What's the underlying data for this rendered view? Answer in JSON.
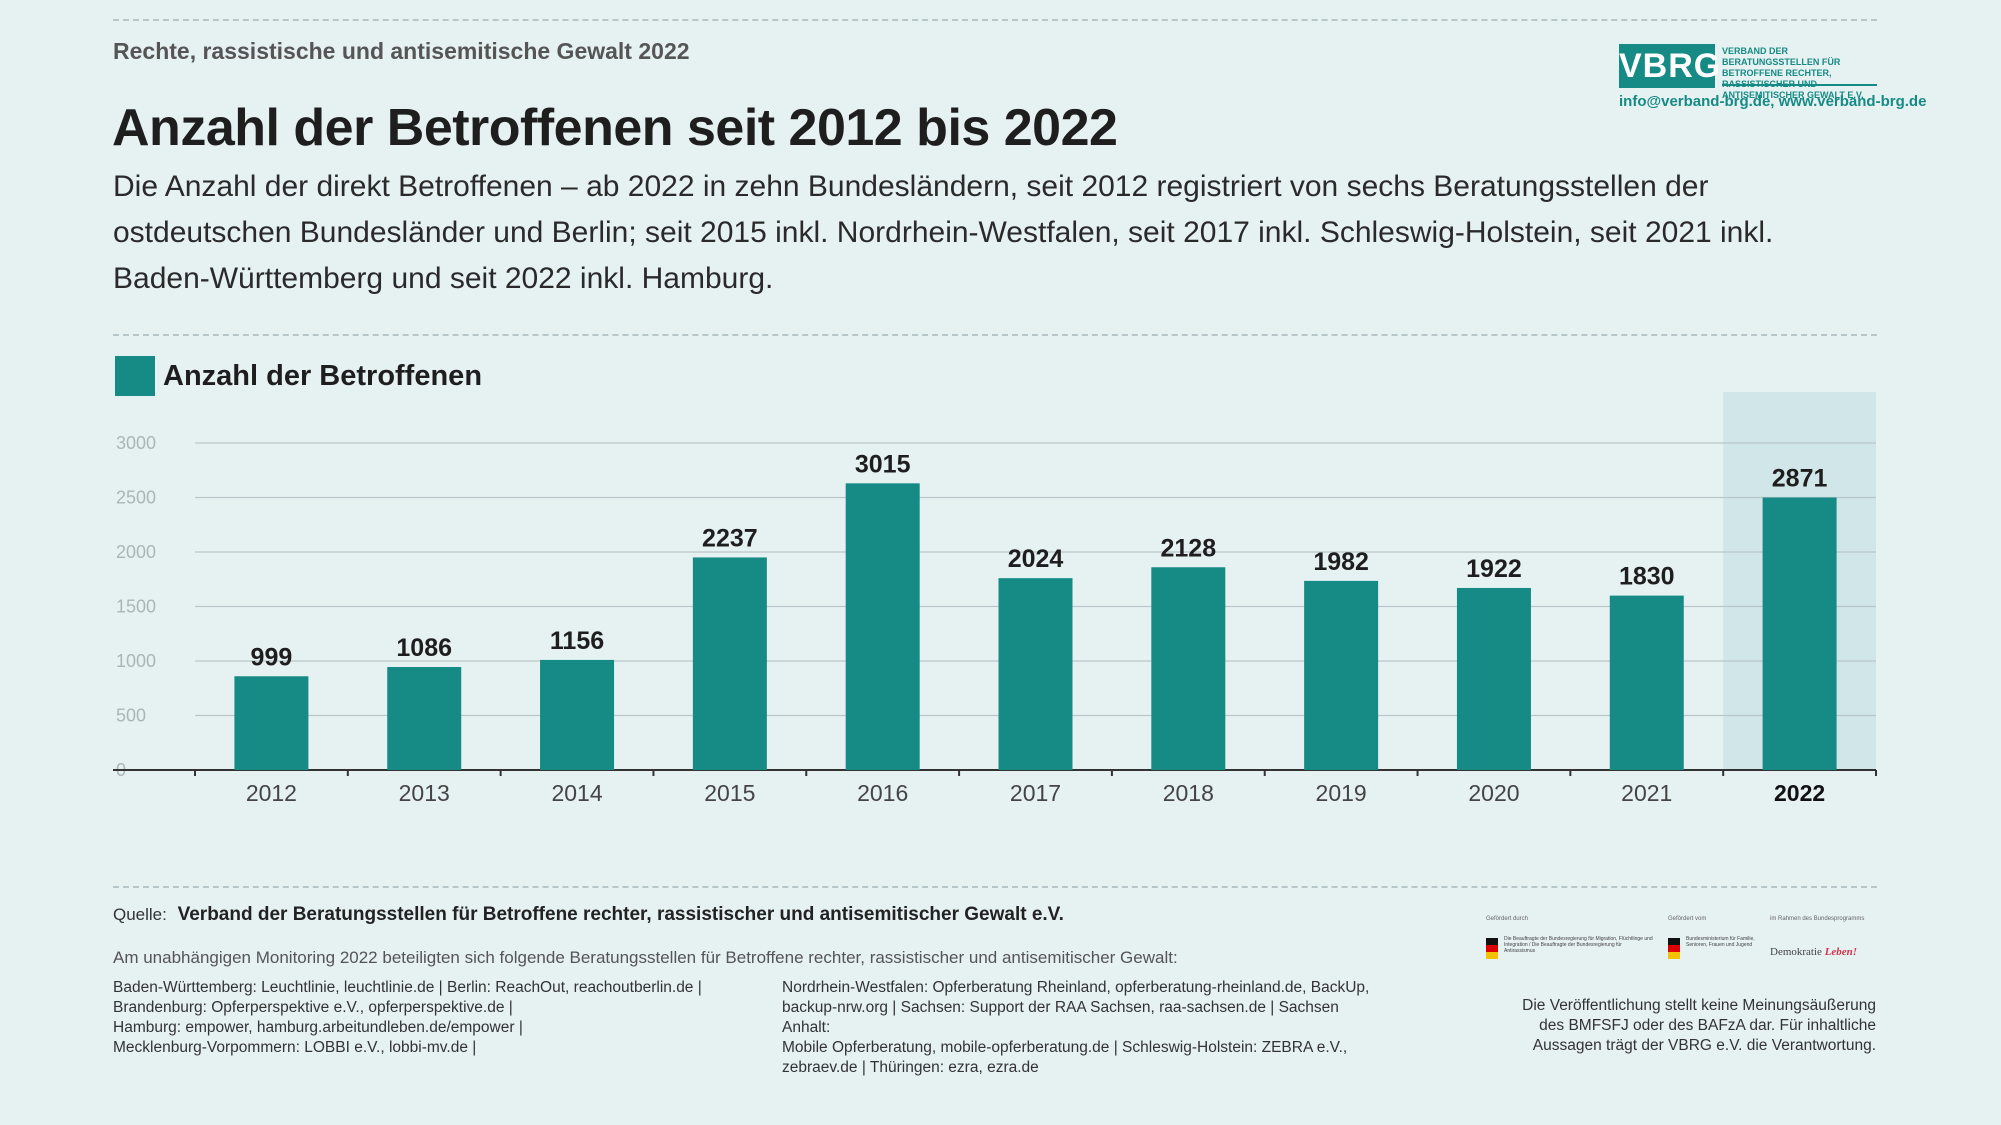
{
  "header": {
    "topic": "Rechte, rassistische und antisemitische Gewalt 2022",
    "title": "Anzahl der Betroffenen seit 2012 bis 2022",
    "subtitle": "Die Anzahl der direkt Betroffenen – ab 2022 in zehn Bundesländern, seit 2012 registriert von sechs Beratungsstellen der ostdeutschen Bundesländer und Berlin; seit 2015 inkl. Nordrhein-Westfalen, seit 2017 inkl. Schleswig-Holstein, seit 2021 inkl. Baden-Württemberg und seit 2022 inkl. Hamburg."
  },
  "logo": {
    "mark": "VBRG",
    "text": "Verband der Beratungsstellen für Betroffene rechter, rassistischer und antisemitischer Gewalt e.V.",
    "contact": "info@verband-brg.de, www.verband-brg.de"
  },
  "colors": {
    "bar": "#168a84",
    "highlight_band": "#d0e6e8",
    "background": "#e6f1f2"
  },
  "chart_data": {
    "type": "bar",
    "legend": "Anzahl der Betroffenen",
    "legend_position": "top-left",
    "categories": [
      "2012",
      "2013",
      "2014",
      "2015",
      "2016",
      "2017",
      "2018",
      "2019",
      "2020",
      "2021",
      "2022"
    ],
    "values": [
      999,
      1086,
      1156,
      2237,
      3015,
      2024,
      2128,
      1982,
      1922,
      1830,
      2871
    ],
    "bar_extent_on_axis": [
      860,
      945,
      1010,
      1950,
      2630,
      1760,
      1860,
      1735,
      1670,
      1600,
      2500
    ],
    "highlight_category": "2022",
    "yticks": [
      0,
      500,
      1000,
      1500,
      2000,
      2500,
      3000
    ],
    "ylim": [
      0,
      3000
    ],
    "grid": true
  },
  "footer": {
    "source_label": "Quelle:",
    "source_text": "Verband der Beratungsstellen für Betroffene rechter, rassistischer und antisemitischer Gewalt e.V.",
    "intro": "Am unabhängigen Monitoring 2022 beteiligten sich folgende Beratungsstellen für Betroffene rechter, rassistischer und antisemitischer Gewalt:",
    "col1": [
      "Baden-Württemberg: Leuchtlinie, leuchtlinie.de | Berlin: ReachOut, reachoutberlin.de |",
      "Brandenburg: Opferperspektive e.V., opferperspektive.de |",
      "Hamburg: empower, hamburg.arbeitundleben.de/empower |",
      "Mecklenburg-Vorpommern: LOBBI e.V., lobbi-mv.de  |"
    ],
    "col2": [
      "Nordrhein-Westfalen: Opferberatung Rheinland, opferberatung-rheinland.de, BackUp,",
      "backup-nrw.org | Sachsen: Support der RAA Sachsen, raa-sachsen.de | Sachsen Anhalt:",
      "Mobile Opferberatung, mobile-opferberatung.de | Schleswig-Holstein: ZEBRA e.V.,",
      "zebraev.de | Thüringen: ezra, ezra.de"
    ],
    "funders": {
      "f1_head": "Gefördert durch",
      "f1_lines": "Die Beauftragte der Bundesregierung für Migration, Flüchtlinge und Integration / Die Beauftragte der Bundesregierung für Antirassismus",
      "f2_head": "Gefördert vom",
      "f2_lines": "Bundesministerium für Familie, Senioren, Frauen und Jugend",
      "f3_head": "im Rahmen des Bundesprogramms",
      "demokratie": "Demokratie",
      "leben": "Leben!"
    },
    "disclaimer": [
      "Die Veröffentlichung stellt keine Meinungsäußerung",
      "des BMFSFJ oder des BAFzA dar. Für inhaltliche",
      "Aussagen trägt der VBRG e.V. die Verantwortung."
    ]
  }
}
